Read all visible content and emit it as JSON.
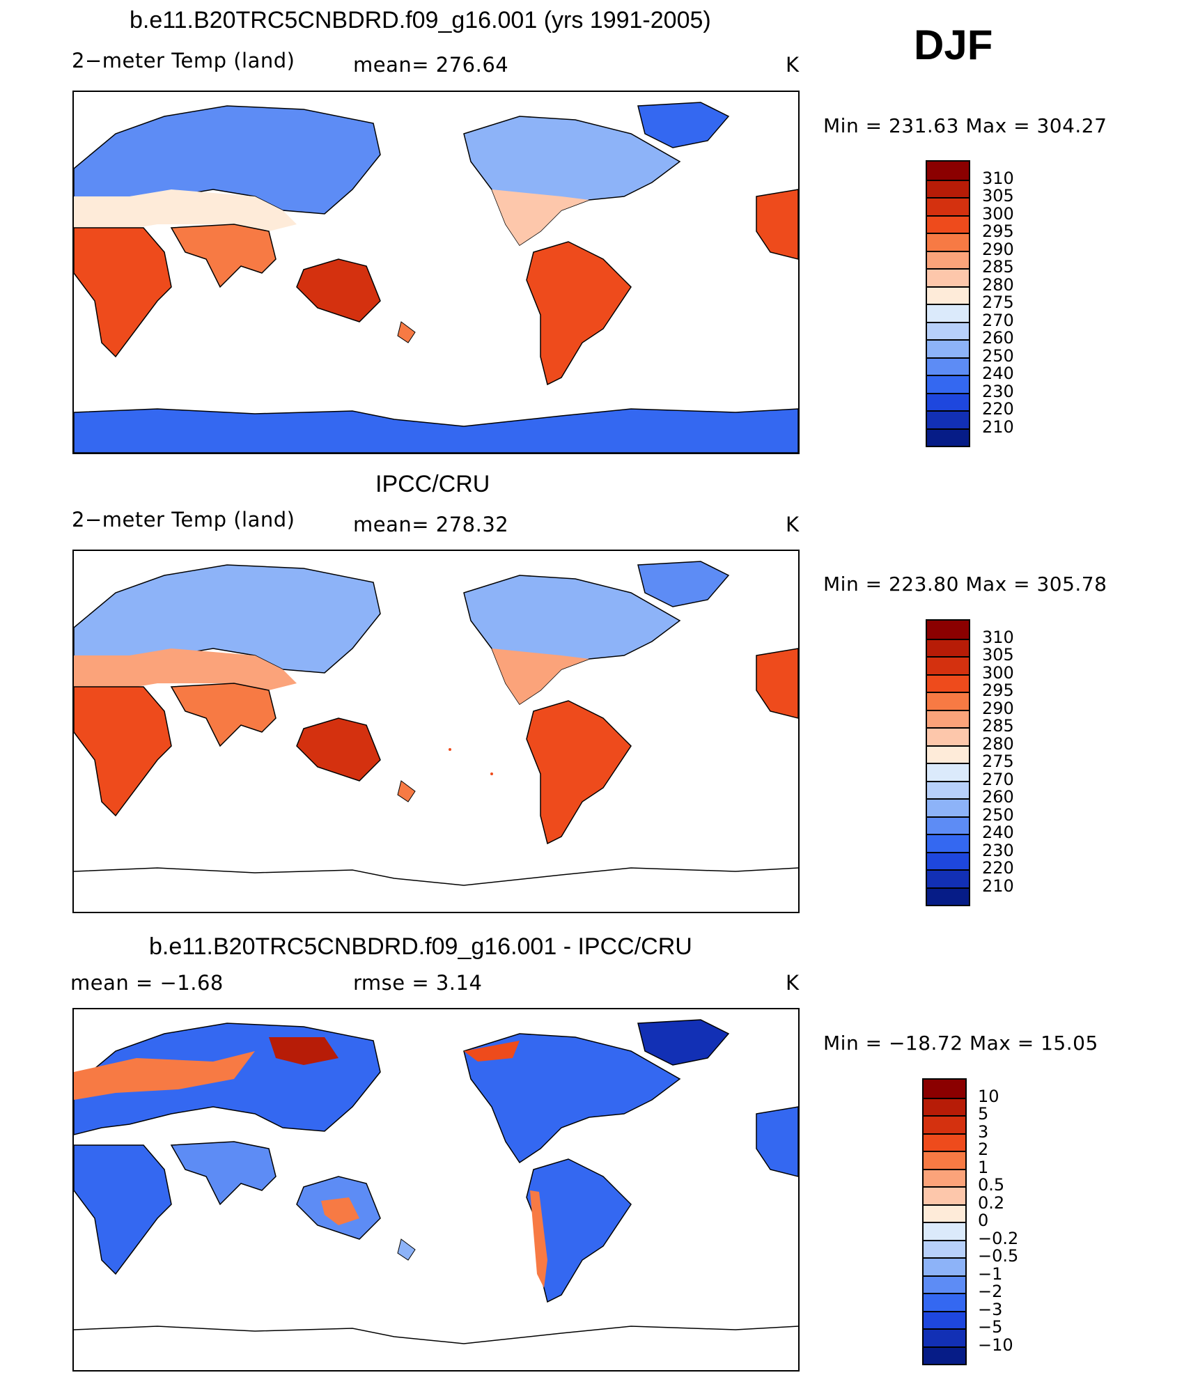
{
  "season": "DJF",
  "top": {
    "title": "b.e11.B20TRC5CNBDRD.f09_g16.001 (yrs 1991-2005)",
    "left": "2−meter Temp (land)",
    "mid": "mean= 276.64",
    "right": "K",
    "minmax": "Min  =  231.63  Max  =  304.27"
  },
  "middle": {
    "title": "IPCC/CRU",
    "left": "2−meter Temp (land)",
    "mid": "mean= 278.32",
    "right": "K",
    "minmax": "Min  =  223.80  Max  =  305.78"
  },
  "bottom": {
    "title": "b.e11.B20TRC5CNBDRD.f09_g16.001 - IPCC/CRU",
    "left": "mean  =    −1.68",
    "mid": "rmse  =     3.14",
    "right": "K",
    "minmax": "Min  =  −18.72  Max  =    15.05"
  },
  "colorbars": {
    "temp": {
      "labels": [
        "310",
        "305",
        "300",
        "295",
        "290",
        "285",
        "280",
        "275",
        "270",
        "260",
        "250",
        "240",
        "230",
        "220",
        "210"
      ],
      "colors": [
        "#8b0000",
        "#b71c07",
        "#d4310f",
        "#ee4b1c",
        "#f77a44",
        "#fba37a",
        "#fdc7ab",
        "#feebd9",
        "#dbeafb",
        "#b7d0fa",
        "#8db3f8",
        "#5d8cf5",
        "#3468f1",
        "#1e47de",
        "#1230b5",
        "#061c87"
      ]
    },
    "diff": {
      "labels": [
        "10",
        "5",
        "3",
        "2",
        "1",
        "0.5",
        "0.2",
        "0",
        "−0.2",
        "−0.5",
        "−1",
        "−2",
        "−3",
        "−5",
        "−10"
      ],
      "colors": [
        "#8b0000",
        "#b71c07",
        "#d4310f",
        "#ee4b1c",
        "#f77a44",
        "#fba37a",
        "#fdc7ab",
        "#feebd9",
        "#dbeafb",
        "#b7d0fa",
        "#8db3f8",
        "#5d8cf5",
        "#3468f1",
        "#1e47de",
        "#1230b5",
        "#061c87"
      ]
    }
  }
}
